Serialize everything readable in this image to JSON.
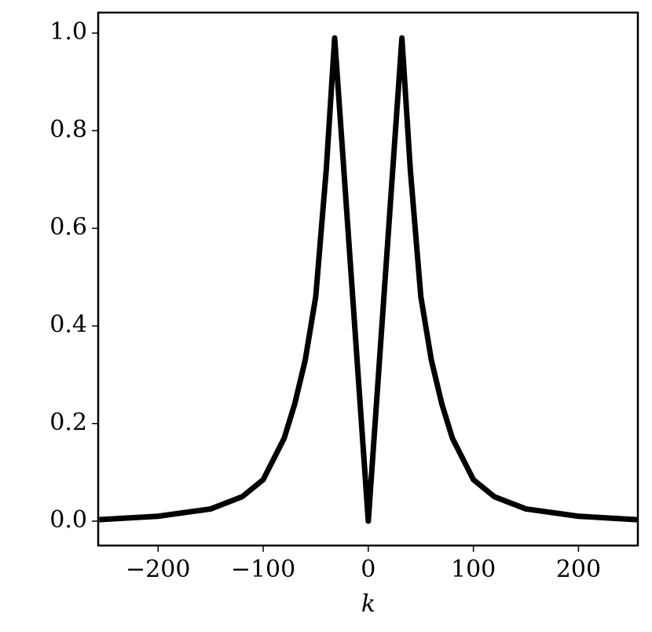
{
  "chart_data": {
    "type": "line",
    "xlabel": "k",
    "x": [
      -256,
      -200,
      -150,
      -120,
      -100,
      -80,
      -70,
      -60,
      -50,
      -40,
      -32,
      0,
      32,
      40,
      50,
      60,
      70,
      80,
      100,
      120,
      150,
      200,
      256
    ],
    "series": [
      {
        "color": "#000000",
        "values": [
          0.003,
          0.01,
          0.025,
          0.05,
          0.085,
          0.17,
          0.24,
          0.33,
          0.46,
          0.72,
          0.99,
          0,
          0.99,
          0.72,
          0.46,
          0.33,
          0.24,
          0.17,
          0.085,
          0.05,
          0.025,
          0.01,
          0.003
        ]
      }
    ],
    "xlim": [
      -257,
      256.5
    ],
    "ylim": [
      -0.05,
      1.042
    ],
    "xticks": [
      {
        "value": -200,
        "label": "−200"
      },
      {
        "value": -100,
        "label": "−100"
      },
      0,
      100,
      200
    ],
    "yticks": [
      {
        "value": 0,
        "label": "0.0"
      },
      {
        "value": 0.2,
        "label": "0.2"
      },
      {
        "value": 0.4,
        "label": "0.4"
      },
      {
        "value": 0.6,
        "label": "0.6"
      },
      {
        "value": 0.8,
        "label": "0.8"
      },
      {
        "value": 1.0,
        "label": "1.0"
      }
    ],
    "grid": false
  }
}
